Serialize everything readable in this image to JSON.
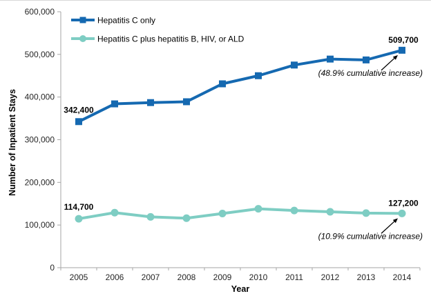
{
  "figure": {
    "background": "#ffffff",
    "border_color": "#d8d8d8"
  },
  "chart_data": {
    "type": "line",
    "title": "",
    "xlabel": "Year",
    "ylabel": "Number of Inpatient Stays",
    "categories": [
      "2005",
      "2006",
      "2007",
      "2008",
      "2009",
      "2010",
      "2011",
      "2012",
      "2013",
      "2014"
    ],
    "series": [
      {
        "name": "Hepatitis C only",
        "color": "#1569b1",
        "marker": "square",
        "values": [
          342400,
          384000,
          387000,
          389000,
          431000,
          450000,
          475000,
          489000,
          487000,
          509700
        ]
      },
      {
        "name": "Hepatitis C plus hepatitis B, HIV, or ALD",
        "color": "#7ecdc3",
        "marker": "circle",
        "values": [
          114700,
          129000,
          119000,
          116000,
          127000,
          138000,
          134000,
          131000,
          128000,
          127200
        ]
      }
    ],
    "ylim": [
      0,
      600000
    ],
    "y_ticks": [
      0,
      100000,
      200000,
      300000,
      400000,
      500000,
      600000
    ],
    "y_tick_labels": [
      "0",
      "100,000",
      "200,000",
      "300,000",
      "400,000",
      "500,000",
      "600,000"
    ],
    "grid": false,
    "legend_position": "top-left",
    "axis_color": "#a6a6a6",
    "annotations": [
      {
        "series": 0,
        "point": "first",
        "label": "342,400"
      },
      {
        "series": 0,
        "point": "last",
        "label": "509,700",
        "note": "(48.9% cumulative increase)"
      },
      {
        "series": 1,
        "point": "first",
        "label": "114,700"
      },
      {
        "series": 1,
        "point": "last",
        "label": "127,200",
        "note": "(10.9% cumulative increase)"
      }
    ]
  }
}
